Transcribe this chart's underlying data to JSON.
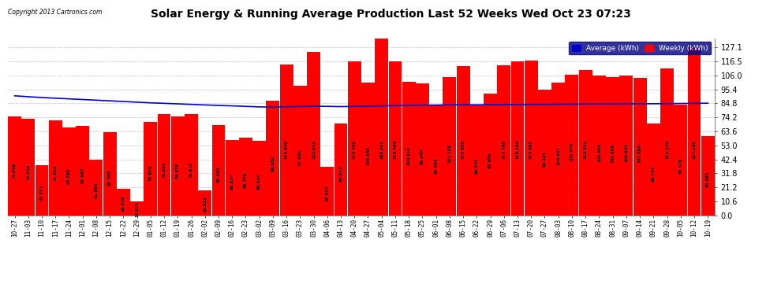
{
  "title": "Solar Energy & Running Average Production Last 52 Weeks Wed Oct 23 07:23",
  "copyright": "Copyright 2013 Cartronics.com",
  "bar_color": "#ff0000",
  "line_color": "#0000cc",
  "background_color": "#ffffff",
  "grid_color": "#cccccc",
  "ylim": [
    0,
    134.0
  ],
  "ytick_values": [
    0.0,
    10.6,
    21.2,
    31.8,
    42.4,
    53.0,
    63.6,
    74.2,
    84.8,
    95.4,
    106.0,
    116.5,
    127.1
  ],
  "legend_avg_color": "#0000cc",
  "legend_weekly_color": "#ff0000",
  "categories": [
    "10-27",
    "11-03",
    "11-10",
    "11-17",
    "11-24",
    "12-01",
    "12-08",
    "12-15",
    "12-22",
    "12-29",
    "01-05",
    "01-12",
    "01-19",
    "01-26",
    "02-02",
    "02-09",
    "02-16",
    "02-23",
    "03-02",
    "03-09",
    "03-16",
    "03-23",
    "03-30",
    "04-06",
    "04-13",
    "04-20",
    "04-27",
    "05-04",
    "05-11",
    "05-18",
    "05-25",
    "06-01",
    "06-08",
    "06-15",
    "06-22",
    "06-29",
    "07-06",
    "07-13",
    "07-20",
    "07-27",
    "08-03",
    "08-10",
    "08-17",
    "08-24",
    "08-31",
    "09-07",
    "09-14",
    "09-21",
    "09-28",
    "10-05",
    "10-12",
    "10-19"
  ],
  "weekly_values": [
    74.938,
    72.82,
    37.812,
    71.812,
    66.696,
    67.967,
    41.89,
    62.705,
    19.918,
    10.671,
    70.974,
    76.881,
    74.879,
    76.87,
    18.813,
    68.46,
    56.834,
    58.77,
    56.534,
    86.93,
    113.92,
    97.932,
    123.642,
    36.813,
    69.813,
    116.526,
    100.664,
    169.201,
    116.564,
    100.812,
    99.645,
    83.644,
    104.406,
    112.9,
    83.643,
    92.406,
    113.79,
    116.488,
    117.092,
    95.324,
    100.697,
    106.576,
    110.301,
    105.606,
    104.966,
    105.603,
    103.884,
    69.724,
    111.14,
    83.579,
    127.265,
    60.095
  ],
  "average_values": [
    90.5,
    89.8,
    89.2,
    88.7,
    88.2,
    87.7,
    87.2,
    86.7,
    86.2,
    85.7,
    85.2,
    84.8,
    84.4,
    84.0,
    83.6,
    83.2,
    82.9,
    82.5,
    82.1,
    82.0,
    82.2,
    82.4,
    82.6,
    82.5,
    82.3,
    82.5,
    82.7,
    82.9,
    83.1,
    83.3,
    83.4,
    83.5,
    83.6,
    83.7,
    83.7,
    83.7,
    83.8,
    83.9,
    84.0,
    84.0,
    84.1,
    84.2,
    84.3,
    84.3,
    84.4,
    84.4,
    84.5,
    84.5,
    84.6,
    84.7,
    84.8,
    84.9
  ]
}
